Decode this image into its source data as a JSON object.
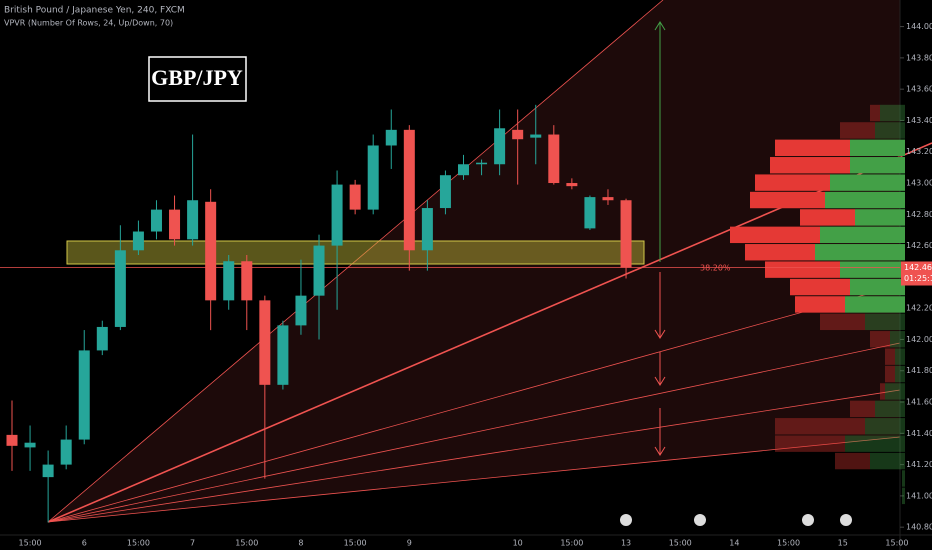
{
  "chart_data": {
    "type": "candlestick",
    "title": "British Pound / Japanese Yen, 240, FXCM",
    "subtitle": "VPVR (Number Of Rows, 24, Up/Down, 70)",
    "symbol": "GBP/JPY",
    "annotation": "38.20%",
    "up_color": "#26a69a",
    "down_color": "#ef5350",
    "categories": [
      null,
      "15:00",
      null,
      null,
      "6",
      null,
      null,
      "15:00",
      null,
      null,
      "7",
      null,
      null,
      "15:00",
      null,
      null,
      "8",
      null,
      null,
      "15:00",
      null,
      null,
      "9",
      null,
      null,
      null,
      null,
      null,
      "10",
      null,
      null,
      "15:00",
      null,
      null,
      "13",
      null,
      null,
      "15:00",
      null,
      null,
      "14",
      null,
      null,
      "15:00",
      null,
      null,
      "15",
      null,
      null,
      "15:00"
    ],
    "open": [
      141.39,
      141.31,
      141.12,
      141.2,
      141.36,
      141.93,
      142.08,
      142.57,
      142.69,
      142.83,
      142.64,
      142.88,
      142.25,
      142.5,
      142.25,
      141.71,
      142.09,
      142.28,
      142.6,
      142.99,
      142.83,
      143.24,
      143.34,
      142.57,
      142.84,
      143.05,
      143.12,
      143.12,
      143.34,
      143.29,
      143.31,
      143.0,
      142.71,
      142.91,
      142.89,
      null,
      null,
      null,
      null,
      null,
      null,
      null,
      null,
      null,
      null,
      null,
      null,
      null,
      null,
      null
    ],
    "high": [
      141.61,
      141.45,
      141.29,
      141.45,
      142.06,
      142.12,
      142.73,
      142.76,
      142.89,
      142.92,
      143.31,
      142.96,
      142.54,
      142.54,
      142.28,
      142.12,
      142.51,
      142.67,
      143.08,
      143.02,
      143.31,
      143.47,
      143.37,
      142.89,
      143.08,
      143.18,
      143.15,
      143.47,
      143.47,
      143.5,
      143.37,
      143.03,
      142.92,
      142.96,
      142.9,
      null,
      null,
      null,
      null,
      null,
      null,
      null,
      null,
      null,
      null,
      null,
      null,
      null,
      null,
      null
    ],
    "low": [
      141.16,
      141.16,
      140.83,
      141.17,
      141.33,
      141.9,
      142.06,
      142.54,
      142.64,
      142.6,
      142.6,
      142.06,
      142.19,
      142.06,
      141.11,
      141.68,
      142.03,
      142.0,
      142.19,
      142.8,
      142.8,
      143.09,
      142.44,
      142.44,
      142.8,
      143.02,
      143.05,
      143.05,
      142.99,
      143.12,
      142.99,
      142.96,
      142.7,
      142.86,
      142.39,
      null,
      null,
      null,
      null,
      null,
      null,
      null,
      null,
      null,
      null,
      null,
      null,
      null,
      null,
      null
    ],
    "close": [
      141.32,
      141.34,
      141.2,
      141.36,
      141.93,
      142.08,
      142.57,
      142.69,
      142.83,
      142.64,
      142.89,
      142.25,
      142.5,
      142.25,
      141.71,
      142.09,
      142.28,
      142.6,
      142.99,
      142.83,
      143.24,
      143.34,
      142.57,
      142.84,
      143.05,
      143.12,
      143.13,
      143.35,
      143.28,
      143.31,
      143.0,
      142.98,
      142.91,
      142.89,
      142.46,
      null,
      null,
      null,
      null,
      null,
      null,
      null,
      null,
      null,
      null,
      null,
      null,
      null,
      null,
      null
    ],
    "ylim": [
      140.75,
      144.17
    ],
    "yticks": [
      {
        "value": 140.8,
        "label": "140.80"
      },
      {
        "value": 141,
        "label": "141.00"
      },
      {
        "value": 141.2,
        "label": "141.20"
      },
      {
        "value": 141.4,
        "label": "141.40"
      },
      {
        "value": 141.6,
        "label": "141.60"
      },
      {
        "value": 141.8,
        "label": "141.80"
      },
      {
        "value": 142,
        "label": "142.00"
      },
      {
        "value": 142.2,
        "label": "142.20"
      },
      {
        "value": 142.6,
        "label": "142.60"
      },
      {
        "value": 142.8,
        "label": "142.80"
      },
      {
        "value": 143,
        "label": "143.00"
      },
      {
        "value": 143.2,
        "label": "143.20"
      },
      {
        "value": 143.4,
        "label": "143.40"
      },
      {
        "value": 143.6,
        "label": "143.60"
      },
      {
        "value": 143.8,
        "label": "143.80"
      },
      {
        "value": 144,
        "label": "144.00"
      }
    ],
    "last_price": {
      "value": 142.46,
      "label": "142.460"
    },
    "countdown": "01:25:13",
    "volume_profile": {
      "low": 140.83,
      "high": 143.5,
      "up_color": "#43a047",
      "down_color": "#e53935",
      "up": [
        0,
        3,
        3,
        35,
        60,
        40,
        30,
        20,
        10,
        10,
        15,
        40,
        60,
        55,
        65,
        90,
        85,
        50,
        80,
        75,
        55,
        55,
        30,
        25
      ],
      "down": [
        0,
        0,
        0,
        35,
        70,
        90,
        25,
        5,
        10,
        10,
        20,
        45,
        50,
        60,
        75,
        70,
        90,
        55,
        75,
        75,
        80,
        75,
        35,
        10
      ]
    }
  }
}
